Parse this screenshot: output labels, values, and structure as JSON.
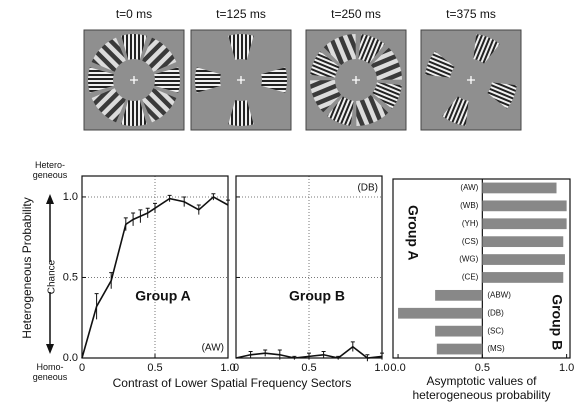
{
  "stimuli": {
    "labels": [
      "t=0 ms",
      "t=125 ms",
      "t=250 ms",
      "t=375 ms"
    ]
  },
  "chart_data": [
    {
      "type": "line",
      "ylabel": "Heterogeneous Probability",
      "xlabel": "Contrast of Lower Spatial Frequency Sectors",
      "y_top_note": "Hetero-geneous",
      "y_mid_note": "Chance",
      "y_bottom_note": "Homo-geneous",
      "annotation": "Group A",
      "subject": "(AW)",
      "x": [
        0,
        0.1,
        0.2,
        0.3,
        0.35,
        0.4,
        0.45,
        0.5,
        0.6,
        0.7,
        0.8,
        0.9,
        1.0
      ],
      "values": [
        0,
        0.32,
        0.48,
        0.83,
        0.86,
        0.88,
        0.9,
        0.93,
        0.99,
        0.97,
        0.92,
        1.0,
        0.95
      ],
      "errors": [
        0,
        0.08,
        0.05,
        0.04,
        0.04,
        0.04,
        0.03,
        0.03,
        0.02,
        0.03,
        0.03,
        0.02,
        0.03
      ],
      "color": "#111111",
      "xlim": [
        0,
        1.0
      ],
      "ylim": [
        0,
        1.13
      ],
      "xticks": [
        0,
        0.5,
        {
          "value": 1.0,
          "label": "1.0"
        }
      ],
      "yticks": [
        {
          "value": 0,
          "label": "0.0"
        },
        0.5,
        {
          "value": 1.0,
          "label": "1.0"
        }
      ],
      "grid": true,
      "ytick_labels": true
    },
    {
      "type": "line",
      "annotation": "Group B",
      "subject": "(DB)",
      "x": [
        0,
        0.1,
        0.2,
        0.3,
        0.4,
        0.5,
        0.6,
        0.7,
        0.8,
        0.9,
        1.0
      ],
      "values": [
        0,
        0.02,
        0.03,
        0.02,
        0,
        0.01,
        0.02,
        0,
        0.07,
        0,
        0.01
      ],
      "errors": [
        0,
        0.02,
        0.02,
        0.03,
        0.01,
        0.02,
        0.02,
        0.01,
        0.03,
        0.02,
        0.02
      ],
      "color": "#111111",
      "xlim": [
        0,
        1.0
      ],
      "ylim": [
        0,
        1.13
      ],
      "xticks": [
        0,
        0.5,
        {
          "value": 1.0,
          "label": "1.0"
        }
      ],
      "yticks": [
        0,
        0.5,
        1.0
      ],
      "grid": true,
      "ytick_labels": false
    },
    {
      "type": "hbar",
      "xlabel": "Asymptotic values of heterogeneous probability",
      "reference_line": 0.5,
      "color": "#888888",
      "groups": [
        {
          "name": "Group A",
          "categories": [
            "(AW)",
            "(WB)",
            "(YH)",
            "(CS)",
            "(WG)",
            "(CE)"
          ],
          "values": [
            0.94,
            1.0,
            1.0,
            0.98,
            0.99,
            0.98
          ]
        },
        {
          "name": "Group B",
          "categories": [
            "(ABW)",
            "(DB)",
            "(SC)",
            "(MS)"
          ],
          "values": [
            0.22,
            0,
            0.22,
            0.23
          ]
        }
      ],
      "xlim": [
        -0.03,
        1.02
      ],
      "xticks": [
        {
          "value": 0,
          "label": "0.0"
        },
        0.5,
        {
          "value": 1.0,
          "label": "1.0"
        }
      ]
    }
  ]
}
